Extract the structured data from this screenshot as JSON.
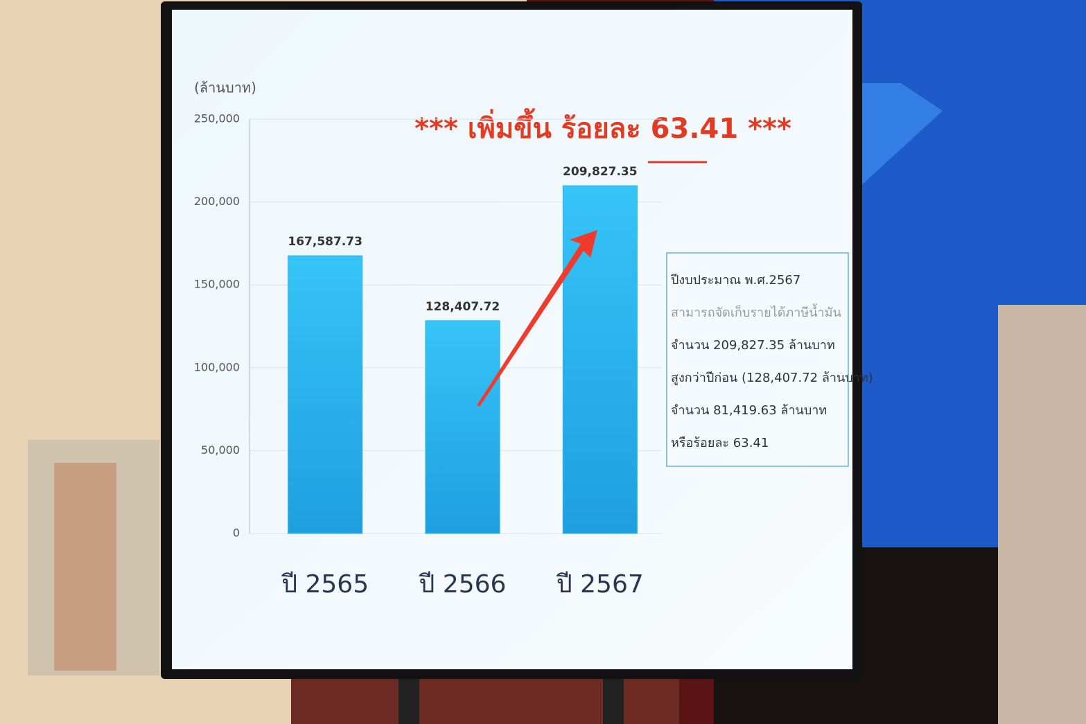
{
  "chart_data": {
    "type": "bar",
    "title": "*** เพิ่มขึ้น ร้อยละ 63.41 ***",
    "y_axis_label": "(ล้านบาท)",
    "categories": [
      "ปี 2565",
      "ปี 2566",
      "ปี 2567"
    ],
    "values": [
      167587.73,
      128407.72,
      209827.35
    ],
    "value_labels": [
      "167,587.73",
      "128,407.72",
      "209,827.35"
    ],
    "color": "#29b4ef",
    "ylim": [
      0,
      250000
    ],
    "yticks": [
      0,
      {
        "value": 50000,
        "label": "50,000"
      },
      {
        "value": 100000,
        "label": "100,000"
      },
      {
        "value": 150000,
        "label": "150,000"
      },
      {
        "value": 200000,
        "label": "200,000"
      },
      {
        "value": 250000,
        "label": "250,000"
      }
    ],
    "grid": true,
    "annotation_box": {
      "lines": [
        "ปีงบประมาณ พ.ศ.2567",
        "สามารถจัดเก็บรายได้ภาษีน้ำมัน",
        "จำนวน 209,827.35 ล้านบาท",
        "สูงกว่าปีก่อน (128,407.72 ล้านบาท)",
        "จำนวน 81,419.63 ล้านบาท",
        "หรือร้อยละ 63.41"
      ]
    }
  }
}
